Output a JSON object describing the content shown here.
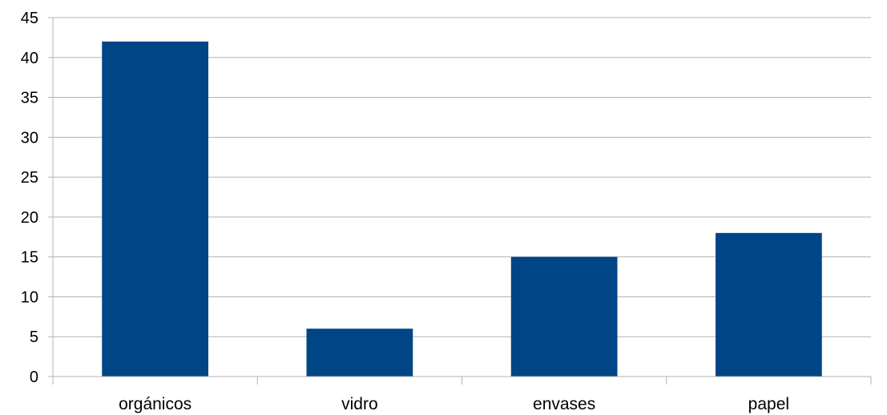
{
  "chart_data": {
    "type": "bar",
    "categories": [
      "orgánicos",
      "vidro",
      "envases",
      "papel"
    ],
    "values": [
      42,
      6,
      15,
      18
    ],
    "title": "",
    "xlabel": "",
    "ylabel": "",
    "ylim": [
      0,
      45
    ],
    "yticks": [
      "0",
      "5",
      "10",
      "15",
      "20",
      "25",
      "30",
      "35",
      "40",
      "45"
    ],
    "grid": true,
    "legend": "none",
    "colors": {
      "bar": "#004586",
      "grid": "#b3b3b3",
      "axis": "#b3b3b3"
    }
  }
}
